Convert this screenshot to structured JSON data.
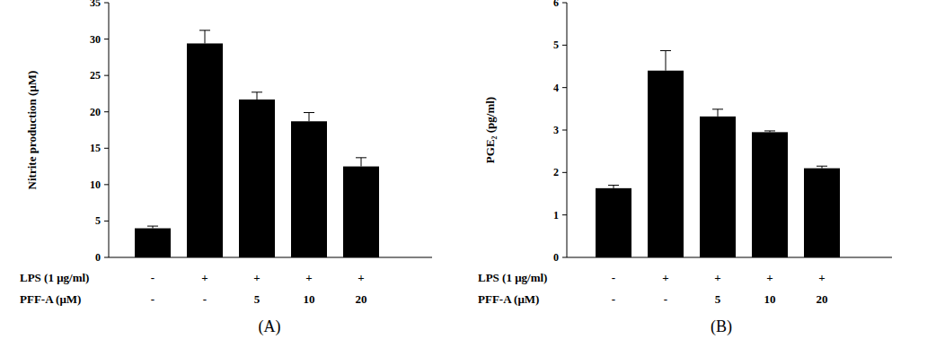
{
  "chart_data": [
    {
      "type": "bar",
      "subtitle": "(A)",
      "y_label": "Nitrite production (μM)",
      "category_labels": [
        "LPS (1 μg/ml)",
        "PFF-A (μM)"
      ],
      "categories": [
        [
          "-",
          "-"
        ],
        [
          "+",
          "-"
        ],
        [
          "+",
          "5"
        ],
        [
          "+",
          "10"
        ],
        [
          "+",
          "20"
        ]
      ],
      "values": [
        4.0,
        29.4,
        21.7,
        18.7,
        12.5
      ],
      "errors": [
        0.3,
        1.8,
        1.0,
        1.2,
        1.2
      ],
      "color": "#000000",
      "ylim": [
        0,
        35
      ],
      "yticks": [
        0,
        5,
        10,
        15,
        20,
        25,
        30,
        35
      ]
    },
    {
      "type": "bar",
      "subtitle": "(B)",
      "y_label": "PGE₂ (pg/ml)",
      "category_labels": [
        "LPS (1 μg/ml)",
        "PFF-A (μM)"
      ],
      "categories": [
        [
          "-",
          "-"
        ],
        [
          "+",
          "-"
        ],
        [
          "+",
          "5"
        ],
        [
          "+",
          "10"
        ],
        [
          "+",
          "20"
        ]
      ],
      "values": [
        1.63,
        4.4,
        3.32,
        2.95,
        2.1
      ],
      "errors": [
        0.07,
        0.47,
        0.17,
        0.03,
        0.05
      ],
      "color": "#000000",
      "ylim": [
        0,
        6
      ],
      "yticks": [
        0,
        1,
        2,
        3,
        4,
        5,
        6
      ]
    }
  ]
}
